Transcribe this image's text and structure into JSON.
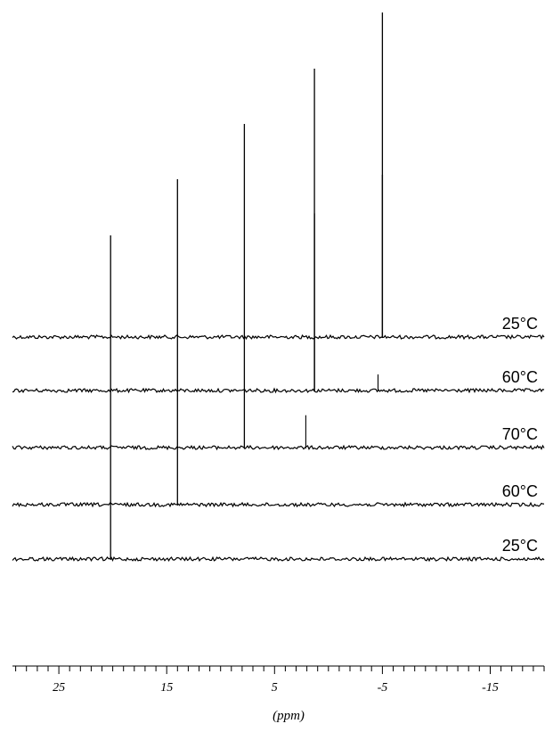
{
  "chart_data": {
    "type": "line",
    "title": "",
    "xlabel": "(ppm)",
    "ylabel": "",
    "x_reversed": true,
    "xlim": [
      29.3,
      -20
    ],
    "x_ticks": [
      25,
      15,
      5,
      -5,
      -15
    ],
    "x_tick_labels": [
      "25",
      "15",
      "5",
      "-5",
      "-15"
    ],
    "x_minor_tick_step": 1,
    "grid": false,
    "legend": "none",
    "stack_order": "top-to-bottom",
    "colors": {
      "trace": "#000000",
      "axis": "#000000"
    },
    "series": [
      {
        "name": "25°C",
        "peaks": [
          {
            "x": -5.0,
            "height": 1.0
          },
          {
            "x": -5.0,
            "height": 0.5
          }
        ]
      },
      {
        "name": "60°C",
        "peaks": [
          {
            "x": 1.3,
            "height": 1.0
          },
          {
            "x": 1.3,
            "height": 0.55
          },
          {
            "x": -4.6,
            "height": 0.05
          }
        ]
      },
      {
        "name": "70°C",
        "peaks": [
          {
            "x": 7.8,
            "height": 1.0
          },
          {
            "x": 2.1,
            "height": 0.1
          }
        ]
      },
      {
        "name": "60°C",
        "peaks": [
          {
            "x": 14.0,
            "height": 1.0
          }
        ]
      },
      {
        "name": "25°C",
        "peaks": [
          {
            "x": 20.2,
            "height": 1.0
          }
        ]
      }
    ]
  }
}
